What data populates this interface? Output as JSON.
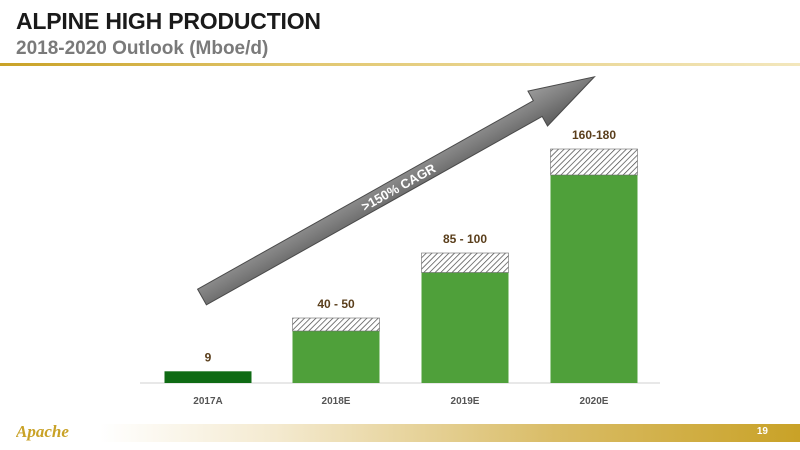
{
  "slide": {
    "title": "ALPINE HIGH PRODUCTION",
    "subtitle": "2018-2020 Outlook (Mboe/d)",
    "page_number": "19",
    "logo_text": "Apache"
  },
  "annotation": {
    "arrow_label": ">150% CAGR"
  },
  "colors": {
    "bar_dark": "#0f6b14",
    "bar_green": "#4fa03a",
    "label_brown": "#5a3e1b",
    "gold": "#c9a227"
  },
  "chart_data": {
    "type": "bar",
    "title": "2018-2020 Outlook (Mboe/d)",
    "categories": [
      "2017A",
      "2018E",
      "2019E",
      "2020E"
    ],
    "values_low": [
      9,
      40,
      85,
      160
    ],
    "values_high": [
      9,
      50,
      100,
      180
    ],
    "value_labels": [
      "9",
      "40 - 50",
      "85 - 100",
      "160-180"
    ],
    "ylim": [
      0,
      200
    ],
    "grid": false,
    "legend": "none",
    "annotation": ">150% CAGR"
  }
}
